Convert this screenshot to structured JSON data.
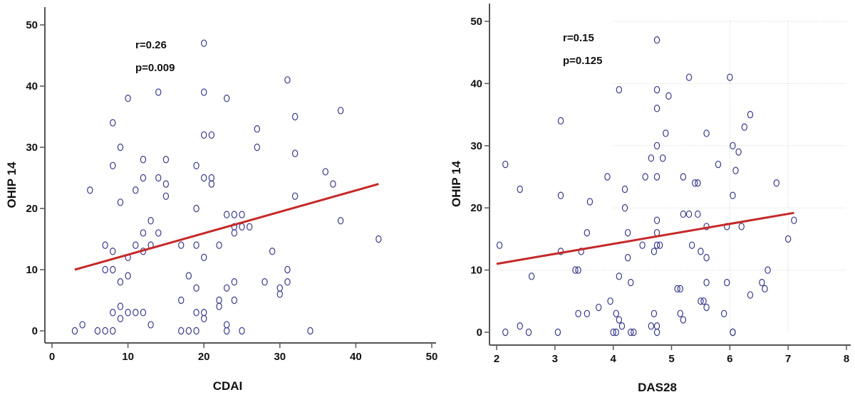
{
  "colors": {
    "point": "#3a3a8c",
    "fit_line": "#c62828",
    "axis": "#555555",
    "grid": "#cfcfcf"
  },
  "chart_data": [
    {
      "type": "scatter",
      "xlabel": "CDAI",
      "ylabel": "OHIP 14",
      "xlim": [
        0,
        50
      ],
      "ylim": [
        0,
        50
      ],
      "xticks": [
        0,
        10,
        20,
        30,
        40,
        50
      ],
      "yticks": [
        0,
        10,
        20,
        30,
        40,
        50
      ],
      "grid": false,
      "annotations": [
        "r=0.26",
        "p=0.009"
      ],
      "trendline": [
        [
          3,
          10
        ],
        [
          43,
          24
        ]
      ],
      "points": [
        [
          3,
          0
        ],
        [
          4,
          1
        ],
        [
          5,
          23
        ],
        [
          6,
          0
        ],
        [
          7,
          0
        ],
        [
          7,
          10
        ],
        [
          7,
          14
        ],
        [
          8,
          0
        ],
        [
          8,
          3
        ],
        [
          8,
          10
        ],
        [
          8,
          13
        ],
        [
          8,
          27
        ],
        [
          8,
          34
        ],
        [
          9,
          2
        ],
        [
          9,
          4
        ],
        [
          9,
          8
        ],
        [
          9,
          21
        ],
        [
          9,
          30
        ],
        [
          10,
          3
        ],
        [
          10,
          9
        ],
        [
          10,
          12
        ],
        [
          10,
          38
        ],
        [
          11,
          3
        ],
        [
          11,
          14
        ],
        [
          11,
          23
        ],
        [
          12,
          3
        ],
        [
          12,
          13
        ],
        [
          12,
          16
        ],
        [
          12,
          25
        ],
        [
          12,
          28
        ],
        [
          13,
          1
        ],
        [
          13,
          14
        ],
        [
          13,
          18
        ],
        [
          14,
          16
        ],
        [
          14,
          25
        ],
        [
          14,
          39
        ],
        [
          15,
          22
        ],
        [
          15,
          24
        ],
        [
          15,
          28
        ],
        [
          17,
          0
        ],
        [
          17,
          5
        ],
        [
          17,
          14
        ],
        [
          18,
          0
        ],
        [
          18,
          9
        ],
        [
          19,
          0
        ],
        [
          19,
          3
        ],
        [
          19,
          7
        ],
        [
          19,
          14
        ],
        [
          19,
          20
        ],
        [
          19,
          27
        ],
        [
          20,
          2
        ],
        [
          20,
          3
        ],
        [
          20,
          12
        ],
        [
          20,
          25
        ],
        [
          20,
          32
        ],
        [
          20,
          39
        ],
        [
          20,
          47
        ],
        [
          21,
          24
        ],
        [
          21,
          25
        ],
        [
          21,
          32
        ],
        [
          22,
          4
        ],
        [
          22,
          5
        ],
        [
          22,
          14
        ],
        [
          23,
          0
        ],
        [
          23,
          1
        ],
        [
          23,
          7
        ],
        [
          23,
          19
        ],
        [
          23,
          38
        ],
        [
          24,
          5
        ],
        [
          24,
          8
        ],
        [
          24,
          16
        ],
        [
          24,
          17
        ],
        [
          24,
          19
        ],
        [
          25,
          0
        ],
        [
          25,
          17
        ],
        [
          25,
          19
        ],
        [
          26,
          17
        ],
        [
          27,
          30
        ],
        [
          27,
          33
        ],
        [
          28,
          8
        ],
        [
          29,
          13
        ],
        [
          30,
          6
        ],
        [
          30,
          7
        ],
        [
          31,
          8
        ],
        [
          31,
          10
        ],
        [
          31,
          41
        ],
        [
          32,
          22
        ],
        [
          32,
          29
        ],
        [
          32,
          35
        ],
        [
          34,
          0
        ],
        [
          36,
          26
        ],
        [
          37,
          24
        ],
        [
          38,
          18
        ],
        [
          38,
          36
        ],
        [
          43,
          15
        ]
      ]
    },
    {
      "type": "scatter",
      "xlabel": "DAS28",
      "ylabel": "OHIP 14",
      "xlim": [
        2,
        8
      ],
      "ylim": [
        0,
        50
      ],
      "xticks": [
        2,
        3,
        4,
        5,
        6,
        7,
        8
      ],
      "yticks": [
        0,
        10,
        20,
        30,
        40,
        50
      ],
      "grid": true,
      "annotations": [
        "r=0.15",
        "p=0.125"
      ],
      "trendline": [
        [
          2.0,
          11
        ],
        [
          7.1,
          19.2
        ]
      ],
      "points": [
        [
          2.05,
          14
        ],
        [
          2.15,
          0
        ],
        [
          2.15,
          27
        ],
        [
          2.4,
          1
        ],
        [
          2.4,
          23
        ],
        [
          2.55,
          0
        ],
        [
          2.6,
          9
        ],
        [
          3.05,
          0
        ],
        [
          3.1,
          13
        ],
        [
          3.1,
          22
        ],
        [
          3.1,
          34
        ],
        [
          3.35,
          10
        ],
        [
          3.4,
          3
        ],
        [
          3.4,
          10
        ],
        [
          3.45,
          13
        ],
        [
          3.55,
          3
        ],
        [
          3.55,
          16
        ],
        [
          3.6,
          21
        ],
        [
          3.75,
          4
        ],
        [
          3.9,
          25
        ],
        [
          3.95,
          5
        ],
        [
          4.0,
          0
        ],
        [
          4.05,
          0
        ],
        [
          4.05,
          3
        ],
        [
          4.1,
          2
        ],
        [
          4.1,
          9
        ],
        [
          4.1,
          39
        ],
        [
          4.15,
          1
        ],
        [
          4.2,
          20
        ],
        [
          4.2,
          23
        ],
        [
          4.25,
          12
        ],
        [
          4.25,
          16
        ],
        [
          4.3,
          8
        ],
        [
          4.3,
          0
        ],
        [
          4.35,
          0
        ],
        [
          4.5,
          14
        ],
        [
          4.55,
          25
        ],
        [
          4.65,
          1
        ],
        [
          4.65,
          28
        ],
        [
          4.7,
          3
        ],
        [
          4.7,
          13
        ],
        [
          4.75,
          0
        ],
        [
          4.75,
          1
        ],
        [
          4.75,
          14
        ],
        [
          4.75,
          16
        ],
        [
          4.75,
          18
        ],
        [
          4.75,
          25
        ],
        [
          4.75,
          30
        ],
        [
          4.75,
          36
        ],
        [
          4.75,
          39
        ],
        [
          4.75,
          47
        ],
        [
          4.8,
          14
        ],
        [
          4.85,
          28
        ],
        [
          4.9,
          32
        ],
        [
          4.95,
          38
        ],
        [
          5.1,
          7
        ],
        [
          5.15,
          3
        ],
        [
          5.15,
          7
        ],
        [
          5.2,
          2
        ],
        [
          5.2,
          19
        ],
        [
          5.2,
          25
        ],
        [
          5.3,
          19
        ],
        [
          5.3,
          41
        ],
        [
          5.35,
          14
        ],
        [
          5.4,
          24
        ],
        [
          5.45,
          19
        ],
        [
          5.45,
          24
        ],
        [
          5.5,
          5
        ],
        [
          5.5,
          13
        ],
        [
          5.55,
          5
        ],
        [
          5.6,
          4
        ],
        [
          5.6,
          8
        ],
        [
          5.6,
          12
        ],
        [
          5.6,
          17
        ],
        [
          5.6,
          32
        ],
        [
          5.8,
          27
        ],
        [
          5.9,
          3
        ],
        [
          5.95,
          8
        ],
        [
          5.95,
          17
        ],
        [
          6.0,
          41
        ],
        [
          6.05,
          0
        ],
        [
          6.05,
          0
        ],
        [
          6.05,
          22
        ],
        [
          6.05,
          30
        ],
        [
          6.1,
          26
        ],
        [
          6.15,
          29
        ],
        [
          6.2,
          17
        ],
        [
          6.25,
          33
        ],
        [
          6.35,
          6
        ],
        [
          6.35,
          35
        ],
        [
          6.55,
          8
        ],
        [
          6.6,
          7
        ],
        [
          6.65,
          10
        ],
        [
          6.8,
          24
        ],
        [
          7.0,
          15
        ],
        [
          7.1,
          18
        ]
      ]
    }
  ]
}
